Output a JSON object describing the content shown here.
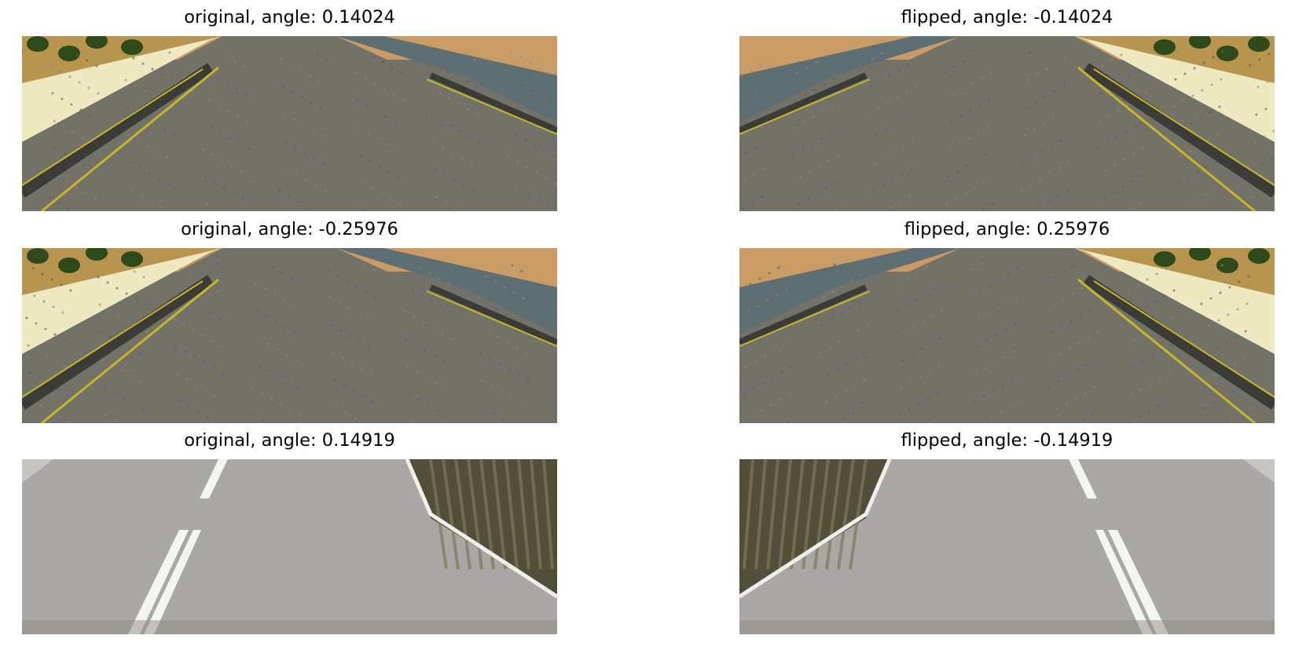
{
  "figure": {
    "panels": [
      {
        "title": "original, angle: 0.14024",
        "scene": "desert",
        "shoulder": "right",
        "flipped": false
      },
      {
        "title": "flipped, angle: -0.14024",
        "scene": "desert",
        "shoulder": "right",
        "flipped": true
      },
      {
        "title": "original, angle: -0.25976",
        "scene": "desert",
        "shoulder": "right",
        "flipped": false
      },
      {
        "title": "flipped, angle: 0.25976",
        "scene": "desert",
        "shoulder": "right",
        "flipped": true
      },
      {
        "title": "original, angle: 0.14919",
        "scene": "city",
        "shoulder": "right",
        "flipped": false
      },
      {
        "title": "flipped, angle: -0.14919",
        "scene": "city",
        "shoulder": "right",
        "flipped": true
      }
    ]
  },
  "colors": {
    "desert_sky": "#b7954f",
    "desert_ground": "#c99c66",
    "bush": "#2e4a1a",
    "sand_bank": "#efe9c2",
    "asphalt_desert": "#727268",
    "shoulder_water": "#5d6f72",
    "lane_yellow": "#c9b52a",
    "lane_dark": "#3b3b38",
    "city_road": "#a9a8a4",
    "city_dark": "#514f3a",
    "city_dash": "#f4f4f0",
    "background": "#ffffff"
  }
}
